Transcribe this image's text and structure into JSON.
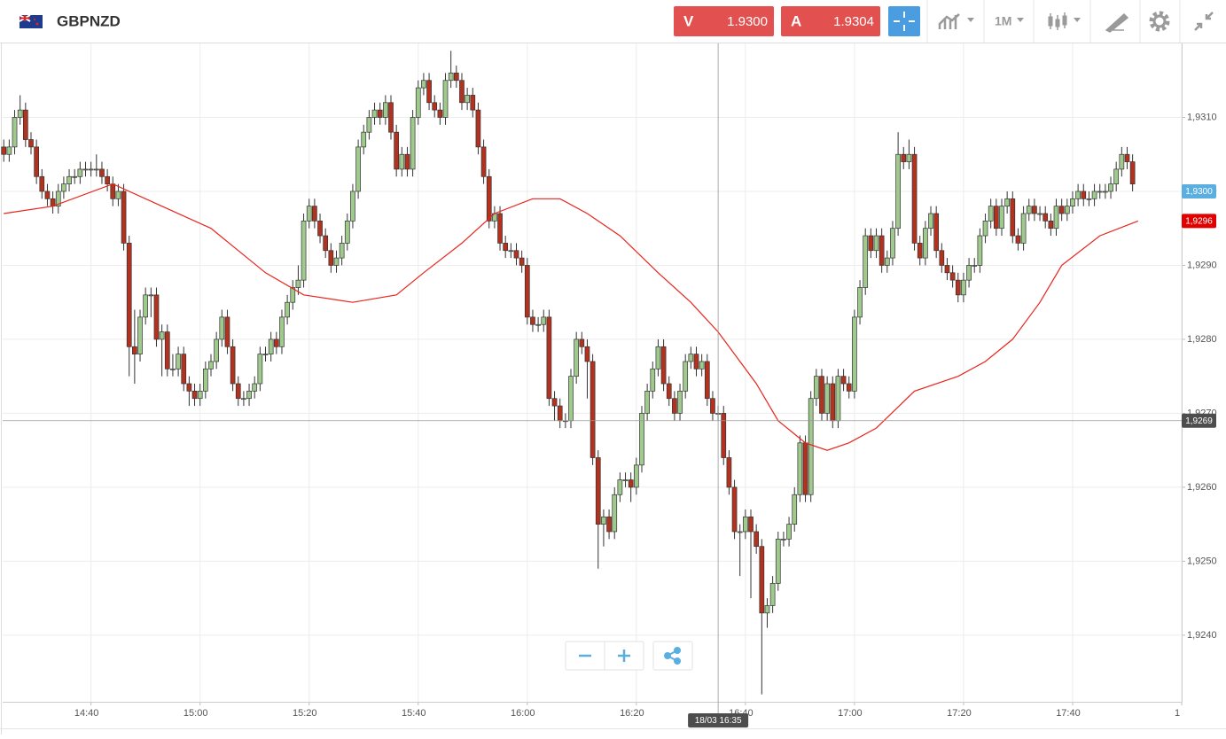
{
  "toolbar": {
    "symbol": "GBPNZD",
    "sell_label": "V",
    "sell_price": "1.9300",
    "buy_label": "A",
    "buy_price": "1.9304",
    "interval": "1M"
  },
  "chart_data": {
    "type": "candlestick",
    "up_color": "#9fc98d",
    "down_color": "#b2321f",
    "grid": true,
    "xlim": [
      863.8,
      1080
    ],
    "ylim": [
      1.9231,
      1.932
    ],
    "xticks": [
      {
        "value": 880,
        "label": "14:40"
      },
      {
        "value": 900,
        "label": "15:00"
      },
      {
        "value": 920,
        "label": "15:20"
      },
      {
        "value": 940,
        "label": "15:40"
      },
      {
        "value": 960,
        "label": "16:00"
      },
      {
        "value": 980,
        "label": "16:20"
      },
      {
        "value": 1000,
        "label": "16:40"
      },
      {
        "value": 1020,
        "label": "17:00"
      },
      {
        "value": 1040,
        "label": "17:20"
      },
      {
        "value": 1060,
        "label": "17:40"
      },
      {
        "value": 1080,
        "label": "1"
      }
    ],
    "yticks": [
      {
        "value": 1.924,
        "label": "1,9240"
      },
      {
        "value": 1.925,
        "label": "1,9250"
      },
      {
        "value": 1.926,
        "label": "1,9260"
      },
      {
        "value": 1.927,
        "label": "1,9270"
      },
      {
        "value": 1.928,
        "label": "1,9280"
      },
      {
        "value": 1.929,
        "label": "1,9290"
      },
      {
        "value": 1.93,
        "label": "1,9300"
      },
      {
        "value": 1.931,
        "label": "1,9310"
      }
    ],
    "x": [
      864,
      865,
      866,
      867,
      868,
      869,
      870,
      871,
      872,
      873,
      874,
      875,
      876,
      877,
      878,
      879,
      880,
      881,
      882,
      883,
      884,
      885,
      886,
      887,
      888,
      889,
      890,
      891,
      892,
      893,
      894,
      895,
      896,
      897,
      898,
      899,
      900,
      901,
      902,
      903,
      904,
      905,
      906,
      907,
      908,
      909,
      910,
      911,
      912,
      913,
      914,
      915,
      916,
      917,
      918,
      919,
      920,
      921,
      922,
      923,
      924,
      925,
      926,
      927,
      928,
      929,
      930,
      931,
      932,
      933,
      934,
      935,
      936,
      937,
      938,
      939,
      940,
      941,
      942,
      943,
      944,
      945,
      946,
      947,
      948,
      949,
      950,
      951,
      952,
      953,
      954,
      955,
      956,
      957,
      958,
      959,
      960,
      961,
      962,
      963,
      964,
      965,
      966,
      967,
      968,
      969,
      970,
      971,
      972,
      973,
      974,
      975,
      976,
      977,
      978,
      979,
      980,
      981,
      982,
      983,
      984,
      985,
      986,
      987,
      988,
      989,
      990,
      991,
      992,
      993,
      994,
      995,
      996,
      997,
      998,
      999,
      1000,
      1001,
      1002,
      1003,
      1004,
      1005,
      1006,
      1007,
      1008,
      1009,
      1010,
      1011,
      1012,
      1013,
      1014,
      1015,
      1016,
      1017,
      1018,
      1019,
      1020,
      1021,
      1022,
      1023,
      1024,
      1025,
      1026,
      1027,
      1028,
      1029,
      1030,
      1031,
      1032,
      1033,
      1034,
      1035,
      1036,
      1037,
      1038,
      1039,
      1040,
      1041,
      1042,
      1043,
      1044,
      1045,
      1046,
      1047,
      1048,
      1049,
      1050,
      1051,
      1052,
      1053,
      1054,
      1055,
      1056,
      1057,
      1058,
      1059,
      1060,
      1061,
      1062,
      1063,
      1064,
      1065,
      1066,
      1067,
      1068,
      1069,
      1070,
      1071
    ],
    "open": [
      1.9306,
      1.9305,
      1.9306,
      1.931,
      1.9311,
      1.9307,
      1.9306,
      1.9302,
      1.93,
      1.9299,
      1.9298,
      1.93,
      1.9301,
      1.9302,
      1.9302,
      1.9303,
      1.9303,
      1.9303,
      1.9303,
      1.9302,
      1.9301,
      1.9299,
      1.93,
      1.9293,
      1.9279,
      1.9278,
      1.9283,
      1.9286,
      1.9286,
      1.928,
      1.9281,
      1.9276,
      1.9276,
      1.9278,
      1.9274,
      1.9273,
      1.9272,
      1.9273,
      1.9276,
      1.9277,
      1.928,
      1.9283,
      1.9279,
      1.9274,
      1.9272,
      1.9272,
      1.9273,
      1.9274,
      1.9278,
      1.9278,
      1.928,
      1.9279,
      1.9283,
      1.9285,
      1.9287,
      1.9288,
      1.9296,
      1.9298,
      1.9296,
      1.9294,
      1.9292,
      1.929,
      1.9291,
      1.9293,
      1.9296,
      1.93,
      1.9306,
      1.9308,
      1.931,
      1.9311,
      1.931,
      1.9312,
      1.9308,
      1.9303,
      1.9305,
      1.9303,
      1.931,
      1.9314,
      1.9315,
      1.9312,
      1.9311,
      1.931,
      1.9315,
      1.9316,
      1.9315,
      1.9312,
      1.9313,
      1.9311,
      1.9306,
      1.9302,
      1.9296,
      1.9297,
      1.9293,
      1.9292,
      1.9292,
      1.9291,
      1.929,
      1.9283,
      1.9282,
      1.9282,
      1.9283,
      1.9272,
      1.9271,
      1.9269,
      1.9269,
      1.9275,
      1.928,
      1.9279,
      1.9277,
      1.9264,
      1.9255,
      1.9256,
      1.9254,
      1.9259,
      1.9261,
      1.9261,
      1.926,
      1.9263,
      1.927,
      1.9273,
      1.9276,
      1.9279,
      1.9274,
      1.9272,
      1.927,
      1.9273,
      1.9277,
      1.9278,
      1.9276,
      1.9277,
      1.9272,
      1.927,
      1.927,
      1.9264,
      1.926,
      1.9254,
      1.9254,
      1.9256,
      1.9254,
      1.9252,
      1.9243,
      1.9244,
      1.9247,
      1.9253,
      1.9253,
      1.9255,
      1.9259,
      1.9266,
      1.9259,
      1.9272,
      1.9275,
      1.927,
      1.9274,
      1.9269,
      1.9275,
      1.9274,
      1.9273,
      1.9283,
      1.9287,
      1.9294,
      1.9292,
      1.9294,
      1.929,
      1.9291,
      1.9295,
      1.9305,
      1.9304,
      1.9305,
      1.9293,
      1.9291,
      1.9295,
      1.9297,
      1.9292,
      1.929,
      1.9289,
      1.9288,
      1.9286,
      1.9288,
      1.929,
      1.929,
      1.9294,
      1.9296,
      1.9298,
      1.9295,
      1.9298,
      1.9299,
      1.9294,
      1.9293,
      1.9297,
      1.9298,
      1.9297,
      1.9297,
      1.9296,
      1.9295,
      1.9298,
      1.9297,
      1.9298,
      1.9299,
      1.93,
      1.9299,
      1.9299,
      1.93,
      1.93,
      1.93,
      1.9301,
      1.9303,
      1.9305,
      1.9304
    ],
    "high": [
      1.9307,
      1.9307,
      1.9311,
      1.9313,
      1.9312,
      1.9308,
      1.9307,
      1.9303,
      1.9301,
      1.93,
      1.9301,
      1.9302,
      1.9303,
      1.9303,
      1.9304,
      1.9304,
      1.9304,
      1.9305,
      1.9304,
      1.9303,
      1.9302,
      1.9301,
      1.9301,
      1.9294,
      1.9284,
      1.9284,
      1.9287,
      1.9287,
      1.9287,
      1.9282,
      1.9282,
      1.9278,
      1.9279,
      1.9279,
      1.9275,
      1.9274,
      1.9274,
      1.9277,
      1.9278,
      1.9281,
      1.9284,
      1.9284,
      1.928,
      1.9275,
      1.9273,
      1.9274,
      1.9275,
      1.9279,
      1.9279,
      1.9281,
      1.9281,
      1.9284,
      1.9286,
      1.9288,
      1.929,
      1.9297,
      1.9299,
      1.9299,
      1.9297,
      1.9295,
      1.9293,
      1.9292,
      1.9294,
      1.9297,
      1.9301,
      1.9307,
      1.9309,
      1.9311,
      1.9312,
      1.9312,
      1.9313,
      1.9313,
      1.9309,
      1.9306,
      1.9306,
      1.9311,
      1.9315,
      1.9316,
      1.9316,
      1.9313,
      1.9312,
      1.9316,
      1.9319,
      1.9317,
      1.9316,
      1.9314,
      1.9314,
      1.9312,
      1.9307,
      1.9303,
      1.9298,
      1.9298,
      1.9294,
      1.9293,
      1.9293,
      1.9292,
      1.9291,
      1.9284,
      1.9283,
      1.9284,
      1.9284,
      1.9273,
      1.9272,
      1.927,
      1.9276,
      1.9281,
      1.9281,
      1.928,
      1.9278,
      1.9265,
      1.9257,
      1.9257,
      1.926,
      1.9262,
      1.9262,
      1.9262,
      1.9264,
      1.9271,
      1.9274,
      1.9277,
      1.928,
      1.928,
      1.9275,
      1.9273,
      1.9274,
      1.9278,
      1.9279,
      1.9279,
      1.9278,
      1.9278,
      1.9273,
      1.9271,
      1.9271,
      1.9265,
      1.9261,
      1.9255,
      1.9257,
      1.9257,
      1.9255,
      1.9253,
      1.9245,
      1.9248,
      1.9254,
      1.9254,
      1.9256,
      1.926,
      1.9267,
      1.9267,
      1.9273,
      1.9276,
      1.9276,
      1.9275,
      1.9275,
      1.9276,
      1.9276,
      1.9275,
      1.9284,
      1.9288,
      1.9295,
      1.9295,
      1.9295,
      1.9295,
      1.9292,
      1.9296,
      1.9308,
      1.9306,
      1.9307,
      1.9306,
      1.9294,
      1.9296,
      1.9298,
      1.9298,
      1.9293,
      1.9291,
      1.929,
      1.9289,
      1.9289,
      1.9291,
      1.9291,
      1.9295,
      1.9297,
      1.9299,
      1.9299,
      1.9299,
      1.93,
      1.93,
      1.9295,
      1.9298,
      1.9299,
      1.9299,
      1.9298,
      1.9298,
      1.9297,
      1.9299,
      1.9299,
      1.9299,
      1.93,
      1.9301,
      1.9301,
      1.93,
      1.9301,
      1.9301,
      1.9301,
      1.9302,
      1.9304,
      1.9306,
      1.9306,
      1.9305
    ],
    "low": [
      1.9304,
      1.9304,
      1.9305,
      1.9309,
      1.9306,
      1.9305,
      1.9301,
      1.9299,
      1.9298,
      1.9297,
      1.9297,
      1.9299,
      1.93,
      1.9301,
      1.9301,
      1.9302,
      1.9302,
      1.9302,
      1.9301,
      1.93,
      1.9298,
      1.9298,
      1.9292,
      1.9275,
      1.9274,
      1.9277,
      1.9282,
      1.9283,
      1.9279,
      1.9275,
      1.9275,
      1.9275,
      1.9275,
      1.9273,
      1.9271,
      1.9271,
      1.9271,
      1.9272,
      1.9275,
      1.9276,
      1.9279,
      1.9278,
      1.9273,
      1.9271,
      1.9271,
      1.9271,
      1.9272,
      1.9273,
      1.9277,
      1.9277,
      1.9278,
      1.9278,
      1.9282,
      1.9284,
      1.9286,
      1.9287,
      1.9295,
      1.9295,
      1.9293,
      1.9291,
      1.9289,
      1.9289,
      1.929,
      1.9292,
      1.9295,
      1.9299,
      1.9305,
      1.9307,
      1.9309,
      1.9309,
      1.9309,
      1.9307,
      1.9302,
      1.9302,
      1.9302,
      1.9302,
      1.9309,
      1.9313,
      1.9311,
      1.931,
      1.9309,
      1.9309,
      1.9314,
      1.9314,
      1.9311,
      1.9311,
      1.931,
      1.9305,
      1.9301,
      1.9295,
      1.9295,
      1.9292,
      1.9291,
      1.9291,
      1.929,
      1.9289,
      1.9282,
      1.9281,
      1.9281,
      1.9281,
      1.9271,
      1.9269,
      1.9268,
      1.9268,
      1.9268,
      1.9274,
      1.9278,
      1.9272,
      1.9263,
      1.9249,
      1.9252,
      1.9253,
      1.9253,
      1.9258,
      1.926,
      1.9258,
      1.9259,
      1.9262,
      1.9269,
      1.9272,
      1.9275,
      1.9273,
      1.9271,
      1.9269,
      1.9269,
      1.9272,
      1.9276,
      1.9275,
      1.9275,
      1.9271,
      1.9269,
      1.9269,
      1.9263,
      1.9259,
      1.9253,
      1.9248,
      1.9253,
      1.9245,
      1.9251,
      1.9232,
      1.9241,
      1.9243,
      1.9246,
      1.9252,
      1.9252,
      1.9254,
      1.9258,
      1.9258,
      1.9258,
      1.9271,
      1.9269,
      1.9269,
      1.9268,
      1.9268,
      1.9273,
      1.9272,
      1.9272,
      1.9282,
      1.9286,
      1.9291,
      1.9291,
      1.9289,
      1.9289,
      1.929,
      1.9294,
      1.9303,
      1.9303,
      1.9292,
      1.929,
      1.929,
      1.9294,
      1.9291,
      1.9289,
      1.9288,
      1.9287,
      1.9285,
      1.9285,
      1.9287,
      1.9289,
      1.9289,
      1.9293,
      1.9295,
      1.9294,
      1.9294,
      1.9297,
      1.9293,
      1.9292,
      1.9292,
      1.9296,
      1.9296,
      1.9296,
      1.9295,
      1.9294,
      1.9294,
      1.9296,
      1.9296,
      1.9297,
      1.9298,
      1.9298,
      1.9298,
      1.9298,
      1.9299,
      1.9299,
      1.9299,
      1.93,
      1.9302,
      1.9303,
      1.93
    ],
    "close": [
      1.9305,
      1.9306,
      1.931,
      1.9311,
      1.9307,
      1.9306,
      1.9302,
      1.93,
      1.9299,
      1.9298,
      1.93,
      1.9301,
      1.9302,
      1.9302,
      1.9303,
      1.9303,
      1.9303,
      1.9303,
      1.9302,
      1.9301,
      1.9299,
      1.93,
      1.9293,
      1.9279,
      1.9278,
      1.9283,
      1.9286,
      1.9286,
      1.928,
      1.9281,
      1.9276,
      1.9276,
      1.9278,
      1.9274,
      1.9273,
      1.9272,
      1.9273,
      1.9276,
      1.9277,
      1.928,
      1.9283,
      1.9279,
      1.9274,
      1.9272,
      1.9272,
      1.9273,
      1.9274,
      1.9278,
      1.9278,
      1.928,
      1.9279,
      1.9283,
      1.9285,
      1.9287,
      1.9288,
      1.9296,
      1.9298,
      1.9296,
      1.9294,
      1.9292,
      1.929,
      1.9291,
      1.9293,
      1.9296,
      1.93,
      1.9306,
      1.9308,
      1.931,
      1.9311,
      1.931,
      1.9312,
      1.9308,
      1.9303,
      1.9305,
      1.9303,
      1.931,
      1.9314,
      1.9315,
      1.9312,
      1.9311,
      1.931,
      1.9315,
      1.9316,
      1.9315,
      1.9312,
      1.9313,
      1.9311,
      1.9306,
      1.9302,
      1.9296,
      1.9297,
      1.9293,
      1.9292,
      1.9292,
      1.9291,
      1.929,
      1.9283,
      1.9282,
      1.9282,
      1.9283,
      1.9272,
      1.9271,
      1.9269,
      1.9269,
      1.9275,
      1.928,
      1.9279,
      1.9277,
      1.9264,
      1.9255,
      1.9256,
      1.9254,
      1.9259,
      1.9261,
      1.9261,
      1.926,
      1.9263,
      1.927,
      1.9273,
      1.9276,
      1.9279,
      1.9274,
      1.9272,
      1.927,
      1.9273,
      1.9277,
      1.9278,
      1.9276,
      1.9277,
      1.9272,
      1.927,
      1.927,
      1.9264,
      1.926,
      1.9254,
      1.9254,
      1.9256,
      1.9254,
      1.9252,
      1.9243,
      1.9244,
      1.9247,
      1.9253,
      1.9253,
      1.9255,
      1.9259,
      1.9266,
      1.9259,
      1.9272,
      1.9275,
      1.927,
      1.9274,
      1.9269,
      1.9275,
      1.9274,
      1.9273,
      1.9283,
      1.9287,
      1.9294,
      1.9292,
      1.9294,
      1.929,
      1.9291,
      1.9295,
      1.9305,
      1.9304,
      1.9305,
      1.9293,
      1.9291,
      1.9295,
      1.9297,
      1.9292,
      1.929,
      1.9289,
      1.9288,
      1.9286,
      1.9288,
      1.929,
      1.929,
      1.9294,
      1.9296,
      1.9298,
      1.9295,
      1.9298,
      1.9299,
      1.9294,
      1.9293,
      1.9297,
      1.9298,
      1.9297,
      1.9297,
      1.9296,
      1.9295,
      1.9298,
      1.9297,
      1.9298,
      1.9299,
      1.93,
      1.9299,
      1.9299,
      1.93,
      1.93,
      1.93,
      1.9301,
      1.9303,
      1.9305,
      1.9304,
      1.9301
    ],
    "overlay": {
      "type": "line",
      "color": "#e8241c",
      "x": [
        864,
        873,
        884,
        893,
        902,
        912,
        919,
        928,
        936,
        941,
        948,
        954,
        961,
        966,
        971,
        977,
        984,
        990,
        995,
        1002,
        1006,
        1011,
        1015,
        1019,
        1024,
        1031,
        1039,
        1044,
        1049,
        1054,
        1058,
        1065,
        1072
      ],
      "values": [
        1.9297,
        1.9298,
        1.9301,
        1.9298,
        1.9295,
        1.9289,
        1.9286,
        1.9285,
        1.9286,
        1.9289,
        1.9293,
        1.9297,
        1.9299,
        1.9299,
        1.9297,
        1.9294,
        1.9289,
        1.9285,
        1.9281,
        1.9274,
        1.9269,
        1.9266,
        1.9265,
        1.9266,
        1.9268,
        1.9273,
        1.9275,
        1.9277,
        1.928,
        1.9285,
        1.929,
        1.9294,
        1.9296
      ]
    },
    "price_badge": {
      "value": 1.93,
      "label": "1,9300",
      "color": "#5aaee0"
    },
    "ma_badge": {
      "value": 1.9296,
      "label": "1,9296",
      "color": "#e00000"
    },
    "crosshair": {
      "x": 995,
      "y": 1.9269,
      "x_label": "18/03 16:35",
      "y_label": "1,9269"
    }
  }
}
